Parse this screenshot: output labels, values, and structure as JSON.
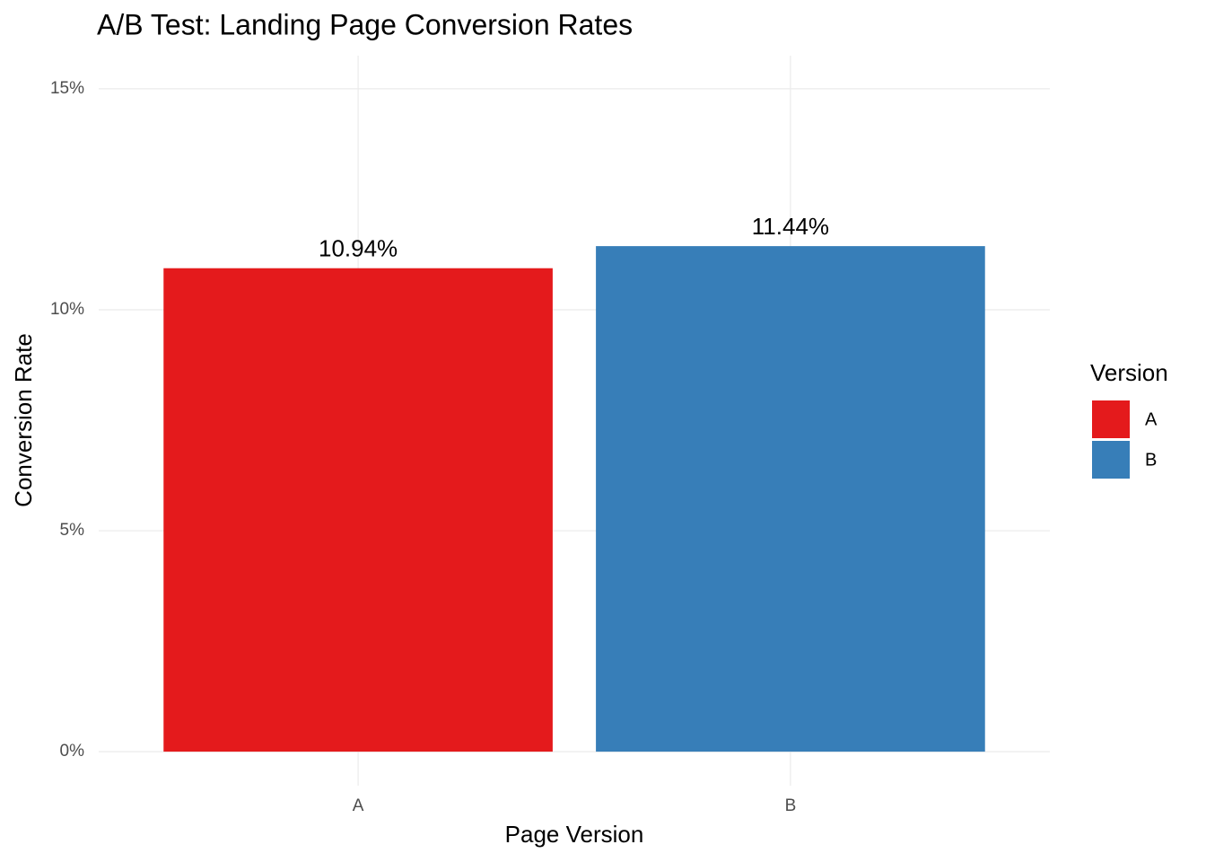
{
  "chart_data": {
    "type": "bar",
    "title": "A/B Test: Landing Page Conversion Rates",
    "x_label": "Page Version",
    "y_label": "Conversion Rate",
    "categories": [
      "A",
      "B"
    ],
    "values": [
      10.94,
      11.44
    ],
    "value_labels": [
      "10.94%",
      "11.44%"
    ],
    "colors": [
      "#e41a1c",
      "#377eb8"
    ],
    "ylim": [
      -0.77,
      15.75
    ],
    "yticks": [
      {
        "value": 0,
        "label": "0%"
      },
      {
        "value": 5,
        "label": "5%"
      },
      {
        "value": 10,
        "label": "10%"
      },
      {
        "value": 15,
        "label": "15%"
      }
    ],
    "grid": true,
    "legend": {
      "title": "Version",
      "position": "right"
    }
  }
}
